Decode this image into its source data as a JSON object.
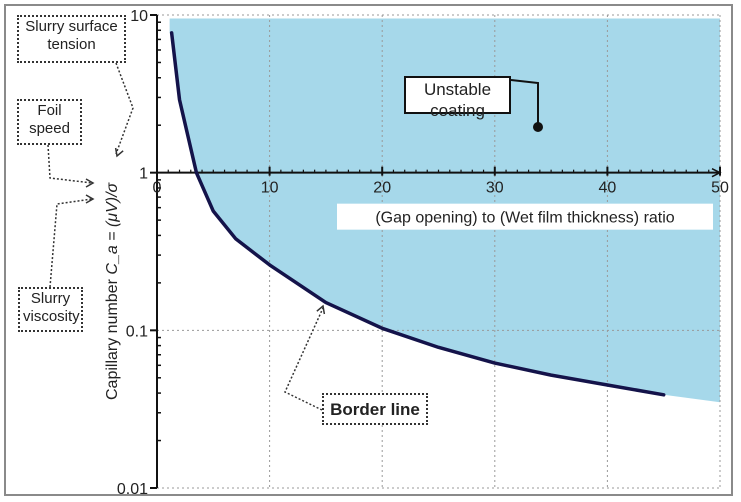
{
  "chart_data": {
    "type": "area",
    "xlabel": "(Gap opening) to (Wet film thickness) ratio",
    "ylabel": "Capillary number",
    "ylabel_formula": "C_a = (μV)/σ",
    "xlim": [
      0,
      50
    ],
    "ylim": [
      0.01,
      10
    ],
    "yscale": "log",
    "grid": true,
    "x_ticks": [
      "0",
      "10",
      "20",
      "30",
      "40",
      "50"
    ],
    "y_ticks": [
      "0.01",
      "0.1",
      "1",
      "10"
    ],
    "series": [
      {
        "name": "Border line",
        "x": [
          1.3,
          2,
          3.5,
          5,
          7,
          10,
          15,
          20,
          25,
          30,
          35,
          40,
          45
        ],
        "y": [
          7.7,
          2.9,
          1.0,
          0.57,
          0.38,
          0.26,
          0.15,
          0.103,
          0.078,
          0.062,
          0.052,
          0.045,
          0.039
        ]
      }
    ],
    "shaded_region": {
      "label": "Unstable coating",
      "color": "#a6d8ea",
      "upper_y": 9.5,
      "x_end": 50,
      "y_end": 0.035
    },
    "annotations": {
      "unstable": "Unstable coating",
      "border": "Border line",
      "tension": "Slurry surface tension",
      "foil": "Foil speed",
      "viscosity": "Slurry viscosity"
    },
    "colors": {
      "curve": "#14134a",
      "fill": "#a6d8ea"
    }
  }
}
